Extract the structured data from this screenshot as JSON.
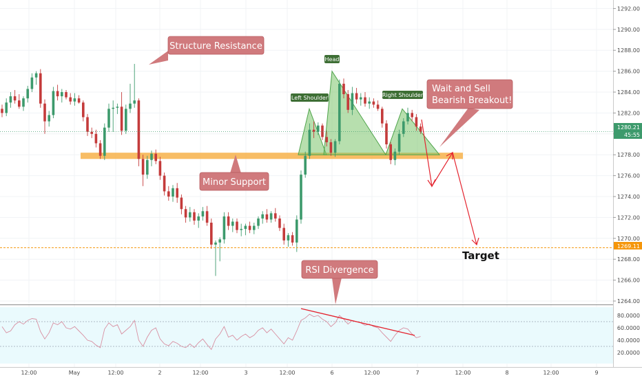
{
  "chart_data": {
    "type": "candlestick",
    "price_axis": {
      "ticks": [
        "1264.00",
        "1266.00",
        "1268.00",
        "1270.00",
        "1272.00",
        "1274.00",
        "1276.00",
        "1278.00",
        "1280.00",
        "1282.00",
        "1284.00",
        "1286.00",
        "1288.00",
        "1290.00",
        "1292.00"
      ],
      "ylim": [
        1263.2,
        1292.3
      ]
    },
    "time_axis": {
      "ticks": [
        "12:00",
        "May",
        "12:00",
        "2",
        "12:00",
        "3",
        "12:00",
        "6",
        "12:00",
        "7",
        "12:00",
        "8",
        "12:00",
        "9"
      ]
    },
    "current_price": {
      "value": "1280.21",
      "countdown": "45:55"
    },
    "target_level": {
      "value": "1269.11"
    },
    "support_zone": [
      1277.6,
      1278.2
    ],
    "candles": [
      {
        "o": 1282.4,
        "h": 1282.8,
        "l": 1281.6,
        "c": 1282.0
      },
      {
        "o": 1282.0,
        "h": 1283.4,
        "l": 1281.7,
        "c": 1283.0
      },
      {
        "o": 1283.0,
        "h": 1284.0,
        "l": 1282.5,
        "c": 1283.6
      },
      {
        "o": 1283.6,
        "h": 1284.2,
        "l": 1282.9,
        "c": 1283.2
      },
      {
        "o": 1283.2,
        "h": 1283.8,
        "l": 1282.4,
        "c": 1282.6
      },
      {
        "o": 1282.6,
        "h": 1283.6,
        "l": 1282.2,
        "c": 1283.4
      },
      {
        "o": 1283.4,
        "h": 1284.6,
        "l": 1283.0,
        "c": 1284.3
      },
      {
        "o": 1284.3,
        "h": 1285.8,
        "l": 1284.0,
        "c": 1285.4
      },
      {
        "o": 1285.4,
        "h": 1286.0,
        "l": 1284.7,
        "c": 1285.8
      },
      {
        "o": 1285.8,
        "h": 1286.2,
        "l": 1282.5,
        "c": 1282.9
      },
      {
        "o": 1282.9,
        "h": 1283.3,
        "l": 1280.0,
        "c": 1281.2
      },
      {
        "o": 1281.2,
        "h": 1282.2,
        "l": 1280.7,
        "c": 1281.8
      },
      {
        "o": 1281.8,
        "h": 1284.5,
        "l": 1281.5,
        "c": 1284.1
      },
      {
        "o": 1284.1,
        "h": 1284.7,
        "l": 1283.2,
        "c": 1283.6
      },
      {
        "o": 1283.6,
        "h": 1284.3,
        "l": 1283.0,
        "c": 1284.0
      },
      {
        "o": 1284.0,
        "h": 1284.2,
        "l": 1283.3,
        "c": 1283.5
      },
      {
        "o": 1283.5,
        "h": 1283.9,
        "l": 1282.8,
        "c": 1283.1
      },
      {
        "o": 1283.1,
        "h": 1283.9,
        "l": 1282.7,
        "c": 1283.4
      },
      {
        "o": 1283.4,
        "h": 1283.7,
        "l": 1282.9,
        "c": 1283.0
      },
      {
        "o": 1283.0,
        "h": 1283.2,
        "l": 1281.2,
        "c": 1281.6
      },
      {
        "o": 1281.6,
        "h": 1281.9,
        "l": 1279.8,
        "c": 1280.2
      },
      {
        "o": 1280.2,
        "h": 1280.6,
        "l": 1279.6,
        "c": 1280.0
      },
      {
        "o": 1280.0,
        "h": 1280.4,
        "l": 1278.7,
        "c": 1279.1
      },
      {
        "o": 1279.1,
        "h": 1279.4,
        "l": 1277.6,
        "c": 1277.9
      },
      {
        "o": 1277.9,
        "h": 1281.0,
        "l": 1277.5,
        "c": 1280.6
      },
      {
        "o": 1280.6,
        "h": 1282.9,
        "l": 1280.2,
        "c": 1282.4
      },
      {
        "o": 1282.4,
        "h": 1283.2,
        "l": 1280.2,
        "c": 1282.5
      },
      {
        "o": 1282.5,
        "h": 1282.9,
        "l": 1281.9,
        "c": 1282.6
      },
      {
        "o": 1282.6,
        "h": 1284.0,
        "l": 1279.9,
        "c": 1280.3
      },
      {
        "o": 1280.3,
        "h": 1282.8,
        "l": 1280.0,
        "c": 1282.4
      },
      {
        "o": 1282.4,
        "h": 1284.8,
        "l": 1282.0,
        "c": 1282.9
      },
      {
        "o": 1282.9,
        "h": 1286.7,
        "l": 1282.5,
        "c": 1283.2
      },
      {
        "o": 1283.2,
        "h": 1283.4,
        "l": 1276.9,
        "c": 1277.6
      },
      {
        "o": 1277.6,
        "h": 1278.0,
        "l": 1275.0,
        "c": 1276.1
      },
      {
        "o": 1276.1,
        "h": 1277.9,
        "l": 1275.7,
        "c": 1277.5
      },
      {
        "o": 1277.5,
        "h": 1278.4,
        "l": 1276.9,
        "c": 1278.1
      },
      {
        "o": 1278.1,
        "h": 1278.5,
        "l": 1277.1,
        "c": 1277.4
      },
      {
        "o": 1277.4,
        "h": 1277.8,
        "l": 1275.6,
        "c": 1276.0
      },
      {
        "o": 1276.0,
        "h": 1276.3,
        "l": 1274.1,
        "c": 1274.5
      },
      {
        "o": 1274.5,
        "h": 1275.0,
        "l": 1273.6,
        "c": 1274.0
      },
      {
        "o": 1274.0,
        "h": 1275.1,
        "l": 1273.5,
        "c": 1274.8
      },
      {
        "o": 1274.8,
        "h": 1275.3,
        "l": 1273.4,
        "c": 1273.9
      },
      {
        "o": 1273.9,
        "h": 1274.2,
        "l": 1272.3,
        "c": 1272.8
      },
      {
        "o": 1272.8,
        "h": 1273.1,
        "l": 1271.5,
        "c": 1272.0
      },
      {
        "o": 1272.0,
        "h": 1273.0,
        "l": 1271.6,
        "c": 1272.5
      },
      {
        "o": 1272.5,
        "h": 1272.8,
        "l": 1271.3,
        "c": 1271.7
      },
      {
        "o": 1271.7,
        "h": 1272.4,
        "l": 1271.0,
        "c": 1272.1
      },
      {
        "o": 1272.1,
        "h": 1273.0,
        "l": 1271.7,
        "c": 1272.6
      },
      {
        "o": 1272.6,
        "h": 1273.1,
        "l": 1271.2,
        "c": 1271.5
      },
      {
        "o": 1271.5,
        "h": 1271.9,
        "l": 1269.0,
        "c": 1269.4
      },
      {
        "o": 1269.4,
        "h": 1269.8,
        "l": 1266.4,
        "c": 1269.6
      },
      {
        "o": 1269.6,
        "h": 1270.1,
        "l": 1267.8,
        "c": 1269.9
      },
      {
        "o": 1269.9,
        "h": 1272.5,
        "l": 1269.5,
        "c": 1272.1
      },
      {
        "o": 1272.1,
        "h": 1272.5,
        "l": 1270.8,
        "c": 1271.2
      },
      {
        "o": 1271.2,
        "h": 1271.9,
        "l": 1270.6,
        "c": 1271.6
      },
      {
        "o": 1271.6,
        "h": 1271.9,
        "l": 1270.5,
        "c": 1270.8
      },
      {
        "o": 1270.8,
        "h": 1271.4,
        "l": 1270.2,
        "c": 1270.9
      },
      {
        "o": 1270.9,
        "h": 1271.4,
        "l": 1270.3,
        "c": 1271.2
      },
      {
        "o": 1271.2,
        "h": 1271.6,
        "l": 1270.5,
        "c": 1270.8
      },
      {
        "o": 1270.8,
        "h": 1271.5,
        "l": 1270.4,
        "c": 1271.2
      },
      {
        "o": 1271.2,
        "h": 1272.1,
        "l": 1270.9,
        "c": 1271.9
      },
      {
        "o": 1271.9,
        "h": 1272.6,
        "l": 1271.4,
        "c": 1272.3
      },
      {
        "o": 1272.3,
        "h": 1272.8,
        "l": 1271.5,
        "c": 1271.8
      },
      {
        "o": 1271.8,
        "h": 1272.6,
        "l": 1271.5,
        "c": 1272.4
      },
      {
        "o": 1272.4,
        "h": 1272.9,
        "l": 1271.6,
        "c": 1271.9
      },
      {
        "o": 1271.9,
        "h": 1272.2,
        "l": 1270.7,
        "c": 1271.0
      },
      {
        "o": 1271.0,
        "h": 1271.4,
        "l": 1269.4,
        "c": 1269.8
      },
      {
        "o": 1269.8,
        "h": 1270.5,
        "l": 1269.2,
        "c": 1270.3
      },
      {
        "o": 1270.3,
        "h": 1270.6,
        "l": 1269.3,
        "c": 1269.6
      },
      {
        "o": 1269.6,
        "h": 1272.2,
        "l": 1268.7,
        "c": 1271.8
      },
      {
        "o": 1271.8,
        "h": 1276.5,
        "l": 1271.4,
        "c": 1276.1
      },
      {
        "o": 1276.1,
        "h": 1278.3,
        "l": 1275.8,
        "c": 1277.9
      },
      {
        "o": 1277.9,
        "h": 1281.0,
        "l": 1277.6,
        "c": 1280.4
      },
      {
        "o": 1280.4,
        "h": 1281.2,
        "l": 1279.6,
        "c": 1280.2
      },
      {
        "o": 1280.2,
        "h": 1281.1,
        "l": 1279.9,
        "c": 1280.8
      },
      {
        "o": 1280.8,
        "h": 1281.0,
        "l": 1279.4,
        "c": 1279.7
      },
      {
        "o": 1279.7,
        "h": 1280.3,
        "l": 1278.8,
        "c": 1279.2
      },
      {
        "o": 1279.2,
        "h": 1279.5,
        "l": 1277.9,
        "c": 1278.2
      },
      {
        "o": 1278.2,
        "h": 1279.5,
        "l": 1277.8,
        "c": 1279.3
      },
      {
        "o": 1279.3,
        "h": 1285.2,
        "l": 1279.0,
        "c": 1284.8
      },
      {
        "o": 1284.8,
        "h": 1285.3,
        "l": 1283.4,
        "c": 1283.8
      },
      {
        "o": 1283.8,
        "h": 1284.2,
        "l": 1282.0,
        "c": 1282.3
      },
      {
        "o": 1282.3,
        "h": 1284.5,
        "l": 1281.8,
        "c": 1283.9
      },
      {
        "o": 1283.9,
        "h": 1284.4,
        "l": 1282.9,
        "c": 1283.3
      },
      {
        "o": 1283.3,
        "h": 1283.9,
        "l": 1282.7,
        "c": 1283.5
      },
      {
        "o": 1283.5,
        "h": 1284.0,
        "l": 1282.6,
        "c": 1282.9
      },
      {
        "o": 1282.9,
        "h": 1283.5,
        "l": 1282.4,
        "c": 1283.1
      },
      {
        "o": 1283.1,
        "h": 1283.4,
        "l": 1282.5,
        "c": 1282.8
      },
      {
        "o": 1282.8,
        "h": 1283.2,
        "l": 1282.2,
        "c": 1282.4
      },
      {
        "o": 1282.4,
        "h": 1282.6,
        "l": 1280.6,
        "c": 1281.0
      },
      {
        "o": 1281.0,
        "h": 1281.3,
        "l": 1278.6,
        "c": 1279.0
      },
      {
        "o": 1279.0,
        "h": 1279.2,
        "l": 1277.1,
        "c": 1277.5
      },
      {
        "o": 1277.5,
        "h": 1278.6,
        "l": 1277.0,
        "c": 1278.3
      },
      {
        "o": 1278.3,
        "h": 1280.4,
        "l": 1278.0,
        "c": 1280.0
      },
      {
        "o": 1280.0,
        "h": 1281.5,
        "l": 1279.7,
        "c": 1281.2
      },
      {
        "o": 1281.2,
        "h": 1282.5,
        "l": 1280.9,
        "c": 1282.0
      },
      {
        "o": 1282.0,
        "h": 1282.3,
        "l": 1281.2,
        "c": 1281.6
      },
      {
        "o": 1281.6,
        "h": 1281.9,
        "l": 1280.3,
        "c": 1280.7
      },
      {
        "o": 1280.7,
        "h": 1281.0,
        "l": 1280.0,
        "c": 1280.21
      }
    ],
    "rsi": {
      "ylim": [
        20,
        100
      ],
      "ticks": [
        "20.0000",
        "40.0000",
        "60.0000",
        "80.0000"
      ],
      "bands": [
        30,
        70
      ],
      "values": [
        62,
        52,
        55,
        65,
        70,
        66,
        72,
        75,
        74,
        54,
        42,
        52,
        68,
        65,
        70,
        60,
        58,
        62,
        55,
        48,
        40,
        38,
        32,
        28,
        58,
        68,
        62,
        65,
        50,
        56,
        62,
        72,
        40,
        30,
        45,
        56,
        60,
        42,
        34,
        31,
        38,
        35,
        30,
        28,
        34,
        28,
        36,
        42,
        33,
        25,
        42,
        50,
        62,
        45,
        48,
        40,
        46,
        50,
        44,
        48,
        56,
        60,
        52,
        58,
        50,
        42,
        34,
        44,
        40,
        55,
        72,
        76,
        82,
        78,
        80,
        74,
        70,
        62,
        68,
        80,
        74,
        66,
        72,
        70,
        68,
        64,
        66,
        62,
        60,
        52,
        45,
        38,
        48,
        56,
        60,
        58,
        50,
        44,
        46
      ]
    },
    "annotations": {
      "structure_resistance": "Structure Resistance",
      "minor_support": "Minor Support",
      "rsi_divergence": "RSI Divergence",
      "wait_sell": [
        "Wait and Sell",
        "Bearish Breakout!"
      ],
      "left_shoulder": "Left Shoulder",
      "head": "Head",
      "right_shoulder": "Right Shoulder",
      "target": "Target"
    },
    "colors": {
      "up": "#3d9a6c",
      "down": "#c43b3b",
      "support": "#f7b14a",
      "pattern_fill": "#7cc46b",
      "callout": "#d07a7d",
      "arrow": "#e4232e",
      "target_line": "#f5960a",
      "tag_green": "#3d6e34"
    }
  }
}
